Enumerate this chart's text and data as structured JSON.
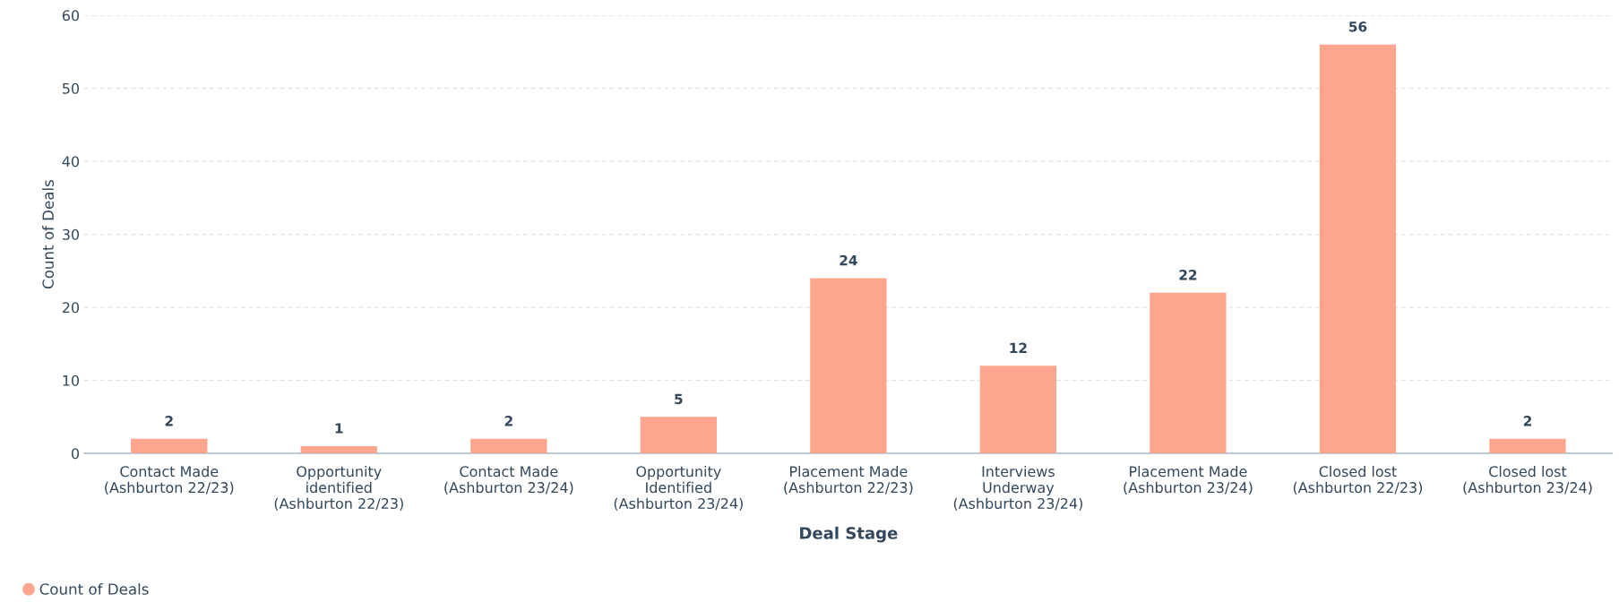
{
  "chart_data": {
    "type": "bar",
    "xlabel": "Deal Stage",
    "ylabel": "Count of Deals",
    "categories": [
      "Contact Made\n(Ashburton 22/23)",
      "Opportunity\nidentified\n(Ashburton 22/23)",
      "Contact Made\n(Ashburton 23/24)",
      "Opportunity\nIdentified\n(Ashburton 23/24)",
      "Placement Made\n(Ashburton 22/23)",
      "Interviews\nUnderway\n(Ashburton 23/24)",
      "Placement Made\n(Ashburton 23/24)",
      "Closed lost\n(Ashburton 22/23)",
      "Closed lost\n(Ashburton 23/24)"
    ],
    "series": [
      {
        "name": "Count of Deals",
        "color": "#fea58e",
        "values": [
          2,
          1,
          2,
          5,
          24,
          12,
          22,
          56,
          2
        ]
      }
    ],
    "ylim": [
      0,
      60
    ],
    "yticks": [
      0,
      10,
      20,
      30,
      40,
      50,
      60
    ],
    "grid": "y",
    "data_labels": true,
    "legend": "bottom left"
  }
}
